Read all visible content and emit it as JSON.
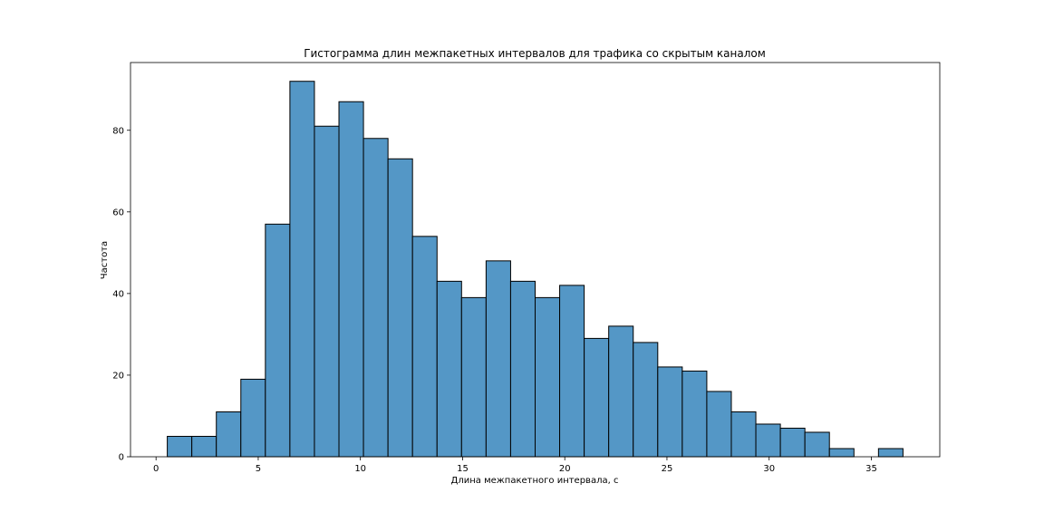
{
  "chart_data": {
    "type": "bar",
    "subtype": "histogram",
    "title": "Гистограмма длин межпакетных интервалов для трафика со скрытым каналом",
    "xlabel": "Длина межпакетного интервала, с",
    "ylabel": "Частота",
    "xlim": [
      -1.25,
      38.35
    ],
    "ylim": [
      0,
      96.6
    ],
    "x_ticks": [
      0,
      5,
      10,
      15,
      20,
      25,
      30,
      35
    ],
    "y_ticks": [
      0,
      20,
      40,
      60,
      80
    ],
    "bin_start": 0.55,
    "bin_width": 1.2,
    "values": [
      5,
      5,
      11,
      19,
      57,
      92,
      81,
      87,
      78,
      73,
      54,
      43,
      39,
      48,
      43,
      39,
      42,
      29,
      32,
      28,
      22,
      21,
      16,
      11,
      8,
      7,
      6,
      2,
      0,
      2
    ],
    "bar_color": "#5497c6",
    "edge_color": "#000000",
    "grid": false,
    "legend": "none"
  }
}
